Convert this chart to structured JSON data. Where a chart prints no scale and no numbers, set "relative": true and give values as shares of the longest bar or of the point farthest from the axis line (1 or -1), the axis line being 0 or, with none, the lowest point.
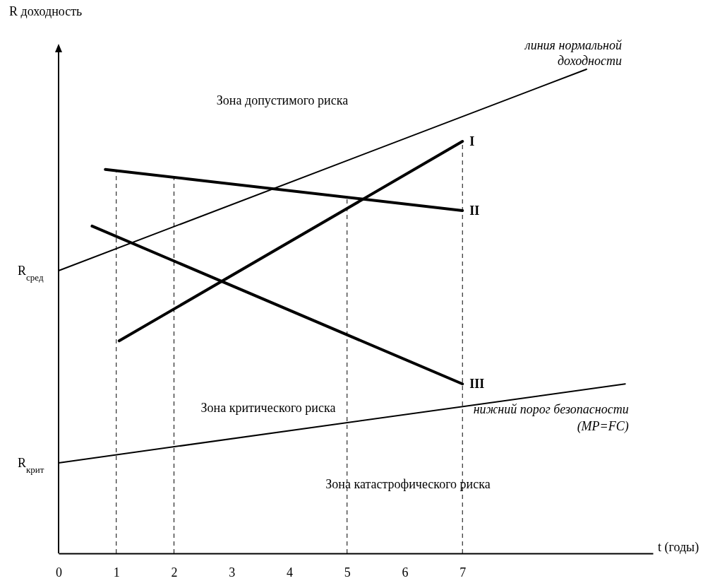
{
  "chart_data": {
    "type": "line",
    "relative": true,
    "xlabel": "t (годы)",
    "ylabel": "R доходность",
    "xlim": [
      0,
      10.3
    ],
    "xticks": [
      0,
      1,
      2,
      3,
      4,
      5,
      6,
      7
    ],
    "series": [
      {
        "name": "линия нормальной доходности",
        "color": "#000000",
        "x": [
          0,
          9.15
        ],
        "values": [
          0.584,
          1
        ]
      },
      {
        "name": "нижний порог безопасности (MP=FC)",
        "color": "#000000",
        "x": [
          0,
          9.82
        ],
        "values": [
          0.187,
          0.35
        ]
      },
      {
        "name": "I",
        "color": "#000000",
        "x": [
          1.05,
          7
        ],
        "values": [
          0.439,
          0.851
        ]
      },
      {
        "name": "II",
        "color": "#000000",
        "x": [
          0.81,
          7
        ],
        "values": [
          0.793,
          0.708
        ]
      },
      {
        "name": "III",
        "color": "#000000",
        "x": [
          0.58,
          7
        ],
        "values": [
          0.676,
          0.35
        ]
      }
    ],
    "ref_lines": [
      {
        "axis": "x",
        "value": 1,
        "line_style": "dashed"
      },
      {
        "axis": "x",
        "value": 2,
        "line_style": "dashed"
      },
      {
        "axis": "x",
        "value": 5,
        "line_style": "dashed"
      },
      {
        "axis": "x",
        "value": 7,
        "line_style": "dashed"
      }
    ],
    "annotations": [
      {
        "text": "R$_{сред}$",
        "x": 0,
        "y": 0.584
      },
      {
        "text": "R$_{крит}$",
        "x": 0,
        "y": 0.187
      },
      "Зона допустимого риска",
      "Зона критического риска",
      "Зона катастрофического риска"
    ],
    "grid": false,
    "legend": false,
    "marker": "none",
    "line_style": "solid"
  }
}
